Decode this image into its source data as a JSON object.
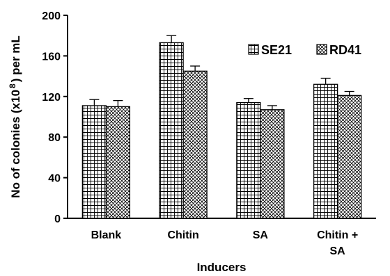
{
  "chart_data": {
    "type": "bar",
    "categories": [
      "Blank",
      "Chitin",
      "SA",
      "Chitin + SA"
    ],
    "category_lines": [
      [
        "Blank"
      ],
      [
        "Chitin"
      ],
      [
        "SA"
      ],
      [
        "Chitin +",
        "SA"
      ]
    ],
    "series": [
      {
        "name": "SE21",
        "values": [
          111,
          173,
          114,
          132
        ],
        "errors": [
          6,
          7,
          4,
          6
        ],
        "pattern": "grid"
      },
      {
        "name": "RD41",
        "values": [
          110,
          145,
          107,
          121
        ],
        "errors": [
          6,
          5,
          4,
          4
        ],
        "pattern": "crosshatch"
      }
    ],
    "title": "",
    "xlabel": "Inducers",
    "ylabel_parts": {
      "before": "No of colonies (x10",
      "sup": "8",
      "after": ") per mL"
    },
    "ylim": [
      0,
      200
    ],
    "yticks": [
      0,
      40,
      80,
      120,
      160,
      200
    ],
    "grid": false,
    "legend_position": "top-right"
  }
}
